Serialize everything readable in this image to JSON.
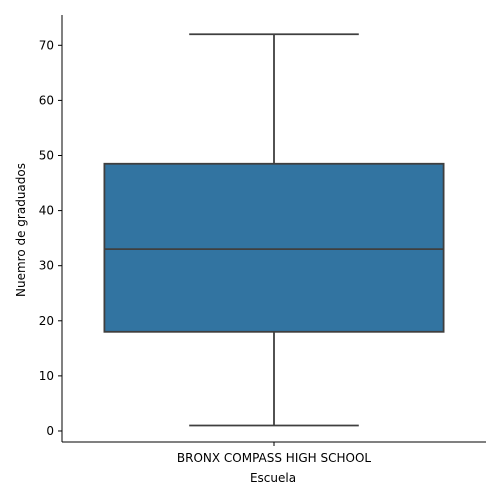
{
  "chart_data": {
    "type": "box",
    "xlabel": "Escuela",
    "ylabel": "Nuemro de graduados",
    "categories": [
      "BRONX COMPASS HIGH SCHOOL"
    ],
    "boxes": [
      {
        "category": "BRONX COMPASS HIGH SCHOOL",
        "min": 1,
        "q1": 18,
        "median": 33,
        "q3": 48.5,
        "max": 72
      }
    ],
    "ylim": [
      -2,
      75.5
    ],
    "yticks": [
      0,
      10,
      20,
      30,
      40,
      50,
      60,
      70
    ],
    "grid": false,
    "colors": {
      "box_fill": "#3274a1",
      "line": "#3f3f3f",
      "axis": "#000000"
    }
  }
}
